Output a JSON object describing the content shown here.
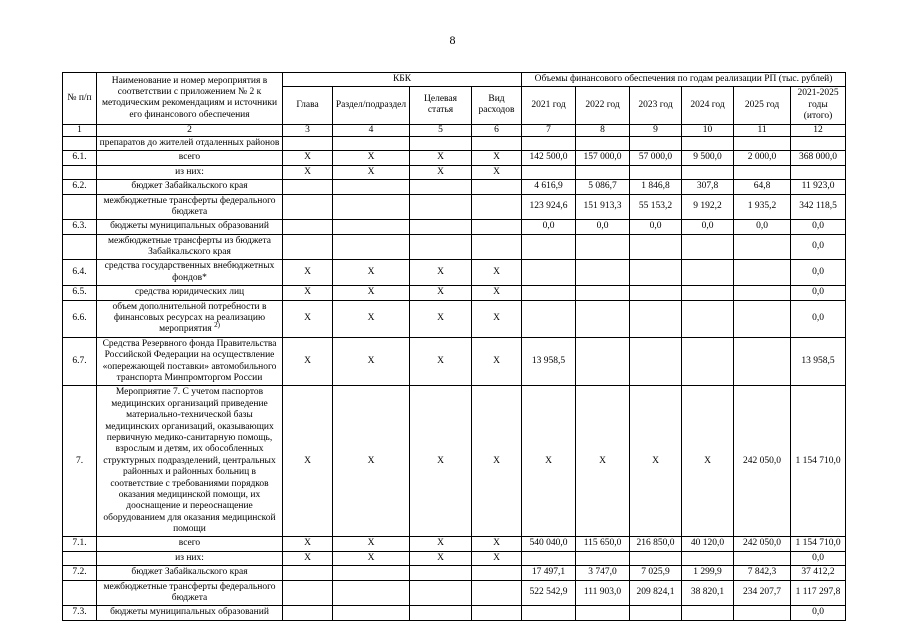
{
  "page": {
    "number": "8"
  },
  "table": {
    "header": {
      "col_num": "№ п/п",
      "col_name": "Наименование и номер мероприятия в соответствии с приложением № 2 к методическим рекомендациям и источники его финансового обеспечения",
      "kbk_group": "КБК",
      "kbk_cols": [
        "Глава",
        "Раздел/подраздел",
        "Целевая статья",
        "Вид расходов"
      ],
      "volumes_group": "Объемы финансового обеспечения по годам реализации РП (тыс. рублей)",
      "year_cols": [
        "2021 год",
        "2022 год",
        "2023 год",
        "2024 год",
        "2025 год",
        "2021-2025 годы (итого)"
      ],
      "index_row": [
        "1",
        "2",
        "3",
        "4",
        "5",
        "6",
        "7",
        "8",
        "9",
        "10",
        "11",
        "12"
      ]
    },
    "rows": [
      {
        "num": "",
        "name": "препаратов до жителей отдаленных районов",
        "kbk": [
          "",
          "",
          "",
          ""
        ],
        "values": [
          "",
          "",
          "",
          "",
          "",
          ""
        ]
      },
      {
        "num": "6.1.",
        "name": "всего",
        "kbk": [
          "X",
          "X",
          "X",
          "X"
        ],
        "values": [
          "142 500,0",
          "157 000,0",
          "57 000,0",
          "9 500,0",
          "2 000,0",
          "368 000,0"
        ]
      },
      {
        "num": "",
        "name": "из них:",
        "kbk": [
          "X",
          "X",
          "X",
          "X"
        ],
        "values": [
          "",
          "",
          "",
          "",
          "",
          ""
        ]
      },
      {
        "num": "6.2.",
        "name": "бюджет Забайкальского края",
        "kbk": [
          "",
          "",
          "",
          ""
        ],
        "values": [
          "4 616,9",
          "5 086,7",
          "1 846,8",
          "307,8",
          "64,8",
          "11 923,0"
        ]
      },
      {
        "num": "",
        "name": "межбюджетные трансферты федерального бюджета",
        "kbk": [
          "",
          "",
          "",
          ""
        ],
        "values": [
          "123 924,6",
          "151 913,3",
          "55 153,2",
          "9 192,2",
          "1 935,2",
          "342 118,5"
        ]
      },
      {
        "num": "6.3.",
        "name": "бюджеты муниципальных образований",
        "kbk": [
          "",
          "",
          "",
          ""
        ],
        "values": [
          "0,0",
          "0,0",
          "0,0",
          "0,0",
          "0,0",
          "0,0"
        ]
      },
      {
        "num": "",
        "name": "межбюджетные трансферты из бюджета Забайкальского края",
        "kbk": [
          "",
          "",
          "",
          ""
        ],
        "values": [
          "",
          "",
          "",
          "",
          "",
          "0,0"
        ]
      },
      {
        "num": "6.4.",
        "name": "средства государственных внебюджетных фондов*",
        "kbk": [
          "X",
          "X",
          "X",
          "X"
        ],
        "values": [
          "",
          "",
          "",
          "",
          "",
          "0,0"
        ]
      },
      {
        "num": "6.5.",
        "name": "средства юридических лиц",
        "kbk": [
          "X",
          "X",
          "X",
          "X"
        ],
        "values": [
          "",
          "",
          "",
          "",
          "",
          "0,0"
        ]
      },
      {
        "num": "6.6.",
        "name": "объем дополнительной потребности в финансовых ресурсах на реализацию мероприятия",
        "name_sup": "2)",
        "kbk": [
          "X",
          "X",
          "X",
          "X"
        ],
        "values": [
          "",
          "",
          "",
          "",
          "",
          "0,0"
        ]
      },
      {
        "num": "6.7.",
        "name": "Средства Резервного фонда Правительства Российской Федерации на осуществление «опережающей поставки» автомобильного транспорта Минпромторгом России",
        "kbk": [
          "X",
          "X",
          "X",
          "X"
        ],
        "values": [
          "13 958,5",
          "",
          "",
          "",
          "",
          "13 958,5"
        ]
      },
      {
        "num": "7.",
        "name": "Мероприятие 7. С учетом паспортов медицинских организаций приведение материально-технической базы медицинских организаций, оказывающих первичную медико-санитарную помощь, взрослым и детям, их обособленных структурных подразделений, центральных районных и районных больниц в соответствие с требованиями порядков оказания медицинской помощи, их дооснащение и переоснащение оборудованием для оказания медицинской помощи",
        "kbk": [
          "X",
          "X",
          "X",
          "X"
        ],
        "values": [
          "X",
          "X",
          "X",
          "X",
          "242 050,0",
          "1 154 710,0"
        ]
      },
      {
        "num": "7.1.",
        "name": "всего",
        "kbk": [
          "X",
          "X",
          "X",
          "X"
        ],
        "values": [
          "540 040,0",
          "115 650,0",
          "216 850,0",
          "40 120,0",
          "242 050,0",
          "1 154 710,0"
        ]
      },
      {
        "num": "",
        "name": "из них:",
        "kbk": [
          "X",
          "X",
          "X",
          "X"
        ],
        "values": [
          "",
          "",
          "",
          "",
          "",
          "0,0"
        ]
      },
      {
        "num": "7.2.",
        "name": "бюджет Забайкальского края",
        "kbk": [
          "",
          "",
          "",
          ""
        ],
        "values": [
          "17 497,1",
          "3 747,0",
          "7 025,9",
          "1 299,9",
          "7 842,3",
          "37 412,2"
        ]
      },
      {
        "num": "",
        "name": "межбюджетные трансферты федерального бюджета",
        "kbk": [
          "",
          "",
          "",
          ""
        ],
        "values": [
          "522 542,9",
          "111 903,0",
          "209 824,1",
          "38 820,1",
          "234 207,7",
          "1 117 297,8"
        ]
      },
      {
        "num": "7.3.",
        "name": "бюджеты муниципальных образований",
        "kbk": [
          "",
          "",
          "",
          ""
        ],
        "values": [
          "",
          "",
          "",
          "",
          "",
          "0,0"
        ]
      }
    ]
  }
}
